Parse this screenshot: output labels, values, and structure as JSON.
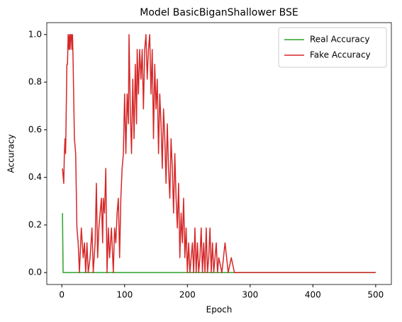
{
  "chart_data": {
    "type": "line",
    "title": "Model BasicBiganShallower BSE",
    "xlabel": "Epoch",
    "ylabel": "Accuracy",
    "xlim": [
      -24,
      525
    ],
    "ylim": [
      -0.05,
      1.05
    ],
    "xticks": [
      0,
      100,
      200,
      300,
      400,
      500
    ],
    "yticks": [
      {
        "value": 0,
        "label": "0.0"
      },
      {
        "value": 0.2,
        "label": "0.2"
      },
      {
        "value": 0.4,
        "label": "0.4"
      },
      {
        "value": 0.6,
        "label": "0.6"
      },
      {
        "value": 0.8,
        "label": "0.8"
      },
      {
        "value": 1,
        "label": "1.0"
      }
    ],
    "legend": "upper right",
    "grid": false,
    "series": [
      {
        "name": "Real Accuracy",
        "color": "#2ca02c",
        "x": [
          1,
          2,
          500
        ],
        "values": [
          0.25,
          0,
          0
        ]
      },
      {
        "name": "Fake Accuracy",
        "color": "#d62728",
        "x": [
          1,
          3,
          4,
          5,
          6,
          8,
          9,
          10,
          11,
          12,
          13,
          14,
          15,
          16,
          17,
          18,
          20,
          22,
          24,
          26,
          28,
          31,
          34,
          36,
          38,
          40,
          42,
          45,
          48,
          50,
          53,
          55,
          57,
          59,
          61,
          63,
          65,
          66,
          68,
          70,
          72,
          74,
          76,
          79,
          82,
          84,
          86,
          88,
          90,
          92,
          94,
          96,
          98,
          100,
          102,
          104,
          106,
          107,
          109,
          111,
          113,
          115,
          117,
          119,
          120,
          122,
          124,
          126,
          128,
          130,
          132,
          134,
          136,
          138,
          140,
          142,
          144,
          146,
          148,
          150,
          152,
          154,
          156,
          158,
          160,
          162,
          164,
          166,
          168,
          170,
          172,
          174,
          176,
          178,
          180,
          182,
          184,
          186,
          188,
          190,
          192,
          194,
          196,
          198,
          200,
          202,
          204,
          206,
          208,
          210,
          212,
          214,
          216,
          218,
          220,
          222,
          224,
          226,
          228,
          230,
          232,
          234,
          236,
          238,
          240,
          242,
          244,
          246,
          248,
          250,
          255,
          260,
          265,
          270,
          275,
          500
        ],
        "values": [
          0.4375,
          0.375,
          0.5,
          0.5625,
          0.5,
          0.875,
          0.875,
          1,
          0.9375,
          1,
          0.9375,
          1,
          1,
          0.9375,
          1,
          0.875,
          0.5625,
          0.5,
          0.1875,
          0.125,
          0,
          0.1875,
          0.0625,
          0.125,
          0,
          0.125,
          0,
          0.0625,
          0.1875,
          0,
          0.125,
          0.375,
          0.0625,
          0.1875,
          0.25,
          0.3125,
          0.125,
          0.3125,
          0.25,
          0.4375,
          0,
          0.1875,
          0.0625,
          0.1875,
          0,
          0.1875,
          0.125,
          0.25,
          0.3125,
          0.0625,
          0.3125,
          0.4375,
          0.5,
          0.75,
          0.5,
          0.75,
          0.625,
          1,
          0.6875,
          0.5,
          0.8125,
          0.5625,
          0.875,
          0.625,
          0.9375,
          0.75,
          0.9375,
          0.8125,
          0.9375,
          0.6875,
          0.9375,
          1,
          0.8125,
          0.9375,
          1,
          0.75,
          0.9375,
          0.5625,
          0.875,
          0.6875,
          0.8125,
          0.5,
          0.75,
          0.625,
          0.4375,
          0.6875,
          0.5625,
          0.375,
          0.625,
          0.4375,
          0.3125,
          0.5625,
          0.4375,
          0.25,
          0.5,
          0.3125,
          0.1875,
          0.375,
          0.0625,
          0.25,
          0.125,
          0.3125,
          0.0625,
          0.1875,
          0,
          0.125,
          0,
          0.0625,
          0.125,
          0,
          0.1875,
          0,
          0.125,
          0,
          0.0625,
          0.1875,
          0,
          0.125,
          0,
          0.1875,
          0,
          0.0625,
          0.1875,
          0,
          0.125,
          0,
          0.0625,
          0.125,
          0,
          0.0625,
          0,
          0.125,
          0,
          0.0625,
          0,
          0
        ]
      }
    ]
  }
}
